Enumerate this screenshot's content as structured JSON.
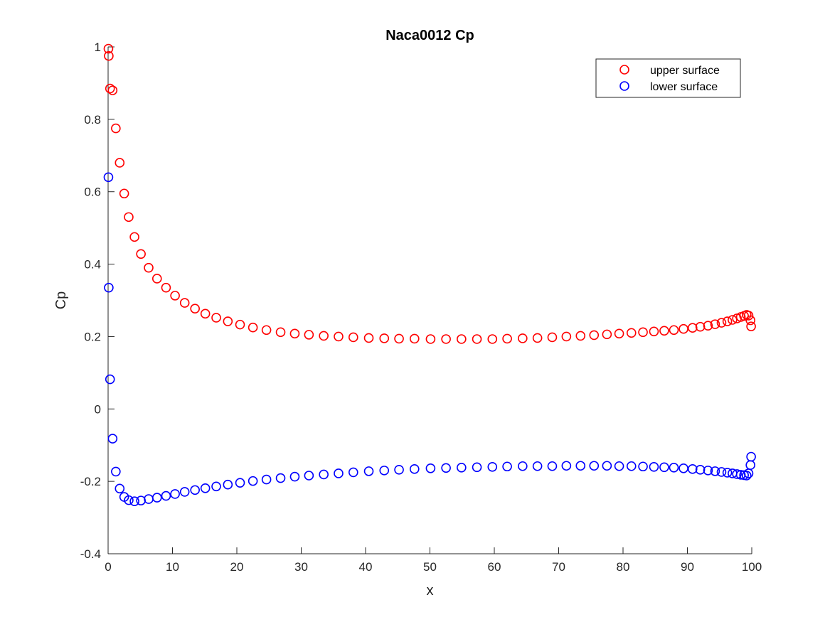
{
  "chart_data": {
    "type": "scatter",
    "title": "Naca0012 Cp",
    "xlabel": "x",
    "ylabel": "Cp",
    "xlim": [
      0,
      100
    ],
    "ylim": [
      -0.4,
      1
    ],
    "xticks": [
      0,
      10,
      20,
      30,
      40,
      50,
      60,
      70,
      80,
      90,
      100
    ],
    "xtick_labels": [
      "0",
      "10",
      "20",
      "30",
      "40",
      "50",
      "60",
      "70",
      "80",
      "90",
      "100"
    ],
    "yticks": [
      -0.4,
      -0.2,
      0,
      0.2,
      0.4,
      0.6,
      0.8,
      1
    ],
    "ytick_labels": [
      "-0.4",
      "-0.2",
      "0",
      "0.2",
      "0.4",
      "0.6",
      "0.8",
      "1"
    ],
    "grid": false,
    "legend_position": "top-right",
    "series": [
      {
        "name": "upper surface",
        "color": "#ff0000",
        "marker": "circle-open",
        "x": [
          0.05,
          0.1,
          0.3,
          0.7,
          1.2,
          1.8,
          2.5,
          3.2,
          4.1,
          5.1,
          6.3,
          7.6,
          9.0,
          10.4,
          11.9,
          13.5,
          15.1,
          16.8,
          18.6,
          20.5,
          22.5,
          24.6,
          26.8,
          29.0,
          31.2,
          33.5,
          35.8,
          38.1,
          40.5,
          42.9,
          45.2,
          47.6,
          50.1,
          52.5,
          54.9,
          57.3,
          59.7,
          62.0,
          64.4,
          66.7,
          69.0,
          71.2,
          73.4,
          75.5,
          77.5,
          79.4,
          81.3,
          83.1,
          84.8,
          86.4,
          87.9,
          89.4,
          90.8,
          92.0,
          93.2,
          94.3,
          95.3,
          96.2,
          97.0,
          97.7,
          98.3,
          98.8,
          99.2,
          99.5,
          99.8,
          99.9
        ],
        "y": [
          0.995,
          0.975,
          0.885,
          0.88,
          0.775,
          0.68,
          0.595,
          0.53,
          0.475,
          0.428,
          0.39,
          0.36,
          0.335,
          0.313,
          0.293,
          0.277,
          0.263,
          0.252,
          0.242,
          0.233,
          0.225,
          0.218,
          0.212,
          0.208,
          0.205,
          0.202,
          0.2,
          0.198,
          0.196,
          0.195,
          0.194,
          0.194,
          0.193,
          0.193,
          0.193,
          0.193,
          0.193,
          0.194,
          0.195,
          0.196,
          0.198,
          0.2,
          0.202,
          0.204,
          0.206,
          0.208,
          0.21,
          0.212,
          0.214,
          0.216,
          0.218,
          0.221,
          0.224,
          0.227,
          0.23,
          0.234,
          0.238,
          0.242,
          0.246,
          0.25,
          0.254,
          0.257,
          0.26,
          0.258,
          0.245,
          0.228
        ]
      },
      {
        "name": "lower surface",
        "color": "#0000ff",
        "marker": "circle-open",
        "x": [
          0.05,
          0.1,
          0.3,
          0.7,
          1.2,
          1.8,
          2.5,
          3.2,
          4.1,
          5.1,
          6.3,
          7.6,
          9.0,
          10.4,
          11.9,
          13.5,
          15.1,
          16.8,
          18.6,
          20.5,
          22.5,
          24.6,
          26.8,
          29.0,
          31.2,
          33.5,
          35.8,
          38.1,
          40.5,
          42.9,
          45.2,
          47.6,
          50.1,
          52.5,
          54.9,
          57.3,
          59.7,
          62.0,
          64.4,
          66.7,
          69.0,
          71.2,
          73.4,
          75.5,
          77.5,
          79.4,
          81.3,
          83.1,
          84.8,
          86.4,
          87.9,
          89.4,
          90.8,
          92.0,
          93.2,
          94.3,
          95.3,
          96.2,
          97.0,
          97.7,
          98.3,
          98.8,
          99.2,
          99.5,
          99.8,
          99.9
        ],
        "y": [
          0.64,
          0.335,
          0.082,
          -0.082,
          -0.173,
          -0.22,
          -0.243,
          -0.252,
          -0.255,
          -0.253,
          -0.249,
          -0.245,
          -0.24,
          -0.235,
          -0.229,
          -0.224,
          -0.219,
          -0.214,
          -0.209,
          -0.204,
          -0.199,
          -0.195,
          -0.191,
          -0.187,
          -0.184,
          -0.181,
          -0.178,
          -0.175,
          -0.172,
          -0.17,
          -0.168,
          -0.166,
          -0.164,
          -0.163,
          -0.162,
          -0.161,
          -0.16,
          -0.159,
          -0.158,
          -0.158,
          -0.158,
          -0.157,
          -0.157,
          -0.157,
          -0.157,
          -0.158,
          -0.158,
          -0.159,
          -0.16,
          -0.161,
          -0.162,
          -0.164,
          -0.166,
          -0.168,
          -0.17,
          -0.172,
          -0.174,
          -0.176,
          -0.178,
          -0.18,
          -0.182,
          -0.183,
          -0.184,
          -0.178,
          -0.155,
          -0.132
        ]
      }
    ]
  }
}
